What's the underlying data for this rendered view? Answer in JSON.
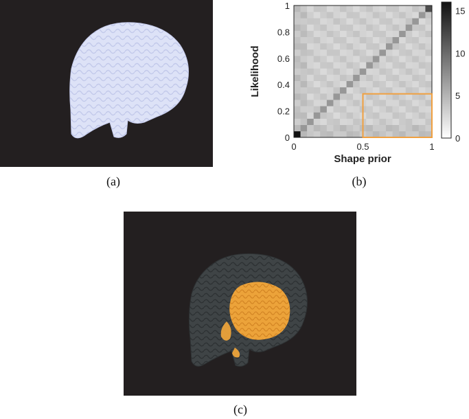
{
  "captions": {
    "a": "(a)",
    "b": "(b)",
    "c": "(c)"
  },
  "colors": {
    "background_dark": "#231f20",
    "brain_surface": "#dde2f7",
    "brain_gray": "#3f4446",
    "activation": "#f5a93a",
    "highlight_box": "#f0a040"
  },
  "chart_data": {
    "type": "heatmap",
    "xlabel": "Shape prior",
    "ylabel": "Likelihood",
    "x_ticks": [
      "0",
      "0.5",
      "1"
    ],
    "y_ticks": [
      "0",
      "0.2",
      "0.4",
      "0.6",
      "0.8",
      "1"
    ],
    "xlim": [
      0,
      1
    ],
    "ylim": [
      0,
      1
    ],
    "grid_size": 21,
    "colorbar": {
      "ticks": [
        "0",
        "5",
        "10",
        "15"
      ],
      "range": [
        0,
        16
      ],
      "colormap": "gray (white to black)"
    },
    "diagonal_value": 7,
    "corner_values": {
      "low_low": 16,
      "high_high": 12
    },
    "background_range": [
      2.5,
      5
    ],
    "highlight_region": {
      "x": [
        0.5,
        1.0
      ],
      "y": [
        0.0,
        0.33
      ],
      "color": "#f0a040"
    }
  }
}
